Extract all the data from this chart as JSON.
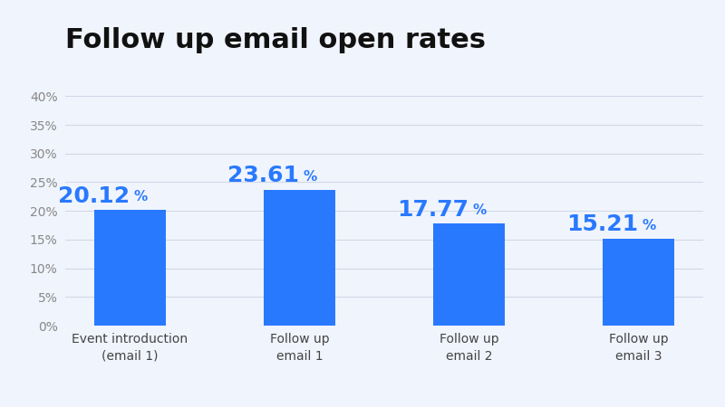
{
  "title": "Follow up email open rates",
  "categories": [
    "Event introduction\n(email 1)",
    "Follow up\nemail 1",
    "Follow up\nemail 2",
    "Follow up\nemail 3"
  ],
  "values": [
    20.12,
    23.61,
    17.77,
    15.21
  ],
  "bar_color": "#2979FF",
  "label_color": "#2979FF",
  "title_color": "#111111",
  "ytick_labels": [
    "0%",
    "5%",
    "10%",
    "15%",
    "20%",
    "25%",
    "30%",
    "35%",
    "40%"
  ],
  "ytick_values": [
    0,
    5,
    10,
    15,
    20,
    25,
    30,
    35,
    40
  ],
  "ylim": [
    0,
    44
  ],
  "background_color": "#f0f4fc",
  "title_fontsize": 22,
  "label_fontsize_large": 18,
  "label_fontsize_small": 11,
  "tick_fontsize": 10,
  "xtick_fontsize": 10,
  "grid_color": "#d0d8e8",
  "tick_color": "#888888"
}
